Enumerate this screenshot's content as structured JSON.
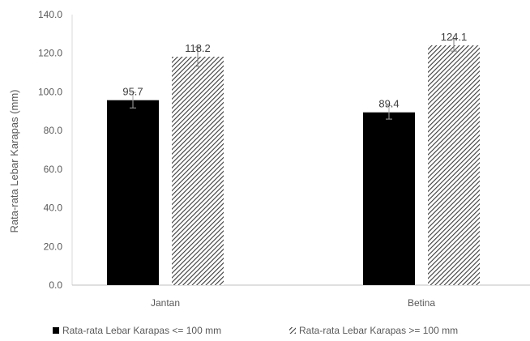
{
  "chart_data": {
    "type": "bar",
    "categories": [
      "Jantan",
      "Betina"
    ],
    "series": [
      {
        "name": "Rata-rata Lebar Karapas <= 100 mm",
        "values": [
          95.7,
          89.4
        ],
        "error": [
          4.0,
          3.5
        ],
        "color": "#000000",
        "pattern": "solid"
      },
      {
        "name": "Rata-rata Lebar Karapas >= 100 mm",
        "values": [
          118.2,
          124.1
        ],
        "error": [
          5.0,
          3.0
        ],
        "color": "#404040",
        "pattern": "hatched"
      }
    ],
    "data_labels": [
      "95.7",
      "118.2",
      "89.4",
      "124.1"
    ],
    "ylabel": "Rata-rata Lebar Karapas (mm)",
    "xlabel": "",
    "ylim": [
      0,
      140
    ],
    "yticks": [
      "0.0",
      "20.0",
      "40.0",
      "60.0",
      "80.0",
      "100.0",
      "120.0",
      "140.0"
    ],
    "grid": false,
    "legend_position": "bottom"
  }
}
